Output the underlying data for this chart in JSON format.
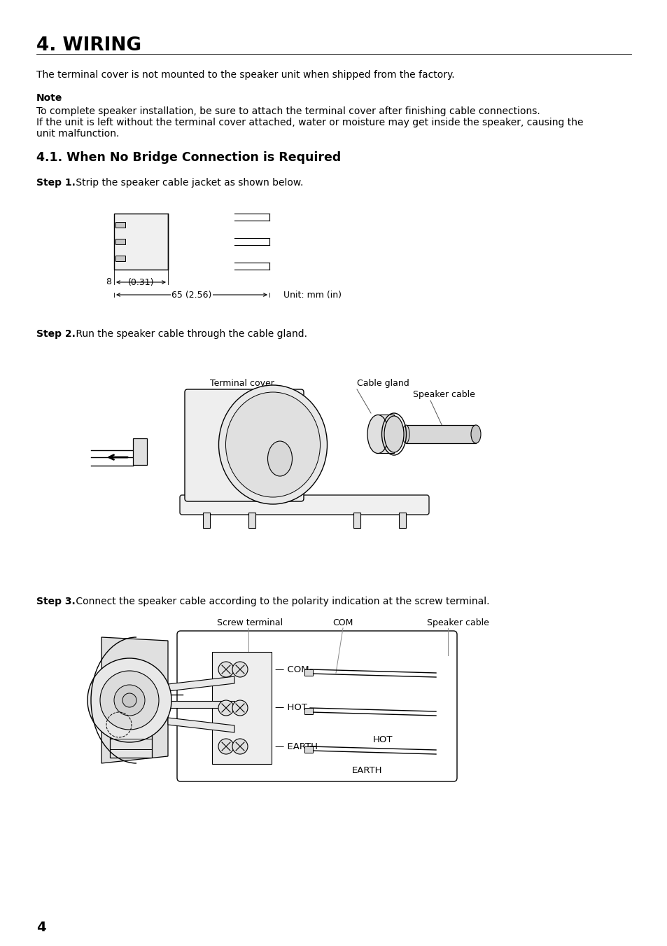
{
  "bg_color": "#ffffff",
  "text_color": "#000000",
  "title": "4. WIRING",
  "page_number": "4",
  "intro_text": "The terminal cover is not mounted to the speaker unit when shipped from the factory.",
  "note_title": "Note",
  "note_line1": "To complete speaker installation, be sure to attach the terminal cover after finishing cable connections.",
  "note_line2": "If the unit is left without the terminal cover attached, water or moisture may get inside the speaker, causing the",
  "note_line3": "unit malfunction.",
  "section_title": "4.1. When No Bridge Connection is Required",
  "step1_bold": "Step 1.",
  "step1_text": " Strip the speaker cable jacket as shown below.",
  "step2_bold": "Step 2.",
  "step2_text": " Run the speaker cable through the cable gland.",
  "step3_bold": "Step 3.",
  "step3_text": " Connect the speaker cable according to the polarity indication at the screw terminal.",
  "dim_8": "8",
  "dim_031": "(0.31)",
  "dim_65": "65 (2.56)",
  "unit_label": "Unit: mm (in)",
  "label_terminal_cover": "Terminal cover",
  "label_cable_gland": "Cable gland",
  "label_speaker_cable_2": "Speaker cable",
  "label_screw_terminal": "Screw terminal",
  "label_com_above": "COM",
  "label_speaker_cable_3": "Speaker cable",
  "label_com": "COM",
  "label_hot": "HOT",
  "label_earth": "EARTH",
  "label_hot_wire": "HOT",
  "label_earth_wire": "EARTH"
}
